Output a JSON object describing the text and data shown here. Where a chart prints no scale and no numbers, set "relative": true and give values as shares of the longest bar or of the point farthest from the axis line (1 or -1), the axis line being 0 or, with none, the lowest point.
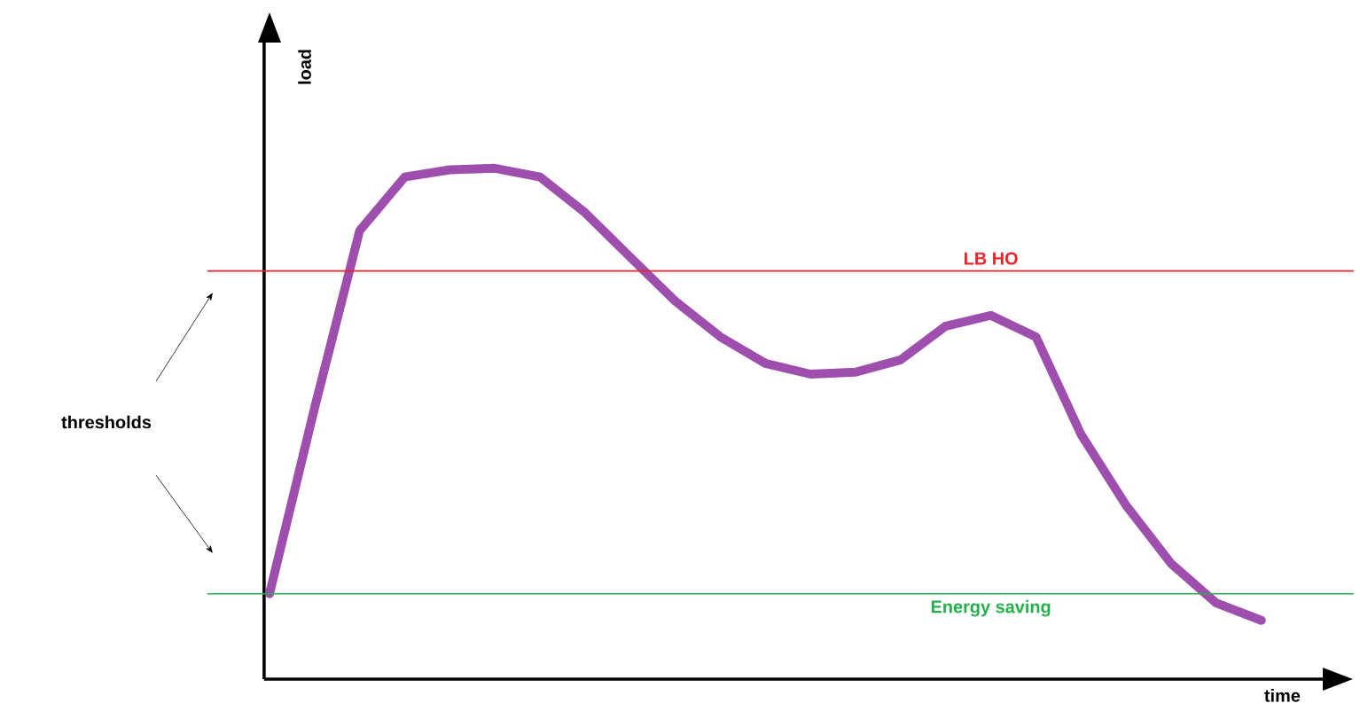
{
  "chart_data": {
    "type": "line",
    "relative": true,
    "xlabel": "time",
    "ylabel": "load",
    "categories": [
      null,
      null,
      null,
      null,
      null,
      null,
      null,
      null,
      null,
      null,
      null,
      null,
      null,
      null,
      null,
      null,
      null,
      null,
      null,
      null,
      null,
      null,
      null
    ],
    "series": [
      {
        "color": "#9e4fae",
        "values": [
          0.167,
          0.531,
          0.878,
          0.983,
          0.997,
          1,
          0.983,
          0.913,
          0.826,
          0.74,
          0.67,
          0.618,
          0.597,
          0.601,
          0.625,
          0.691,
          0.712,
          0.67,
          0.479,
          0.34,
          0.226,
          0.149,
          0.115
        ]
      }
    ],
    "ref_lines": [
      {
        "axis": "y",
        "value": 0.799,
        "label": "LB HO",
        "color": "#e8262b"
      },
      {
        "axis": "y",
        "value": 0.167,
        "label": "Energy saving",
        "color": "#22b04b"
      }
    ],
    "annotations": [
      "thresholds"
    ],
    "marker": "none",
    "line_style": "solid"
  }
}
